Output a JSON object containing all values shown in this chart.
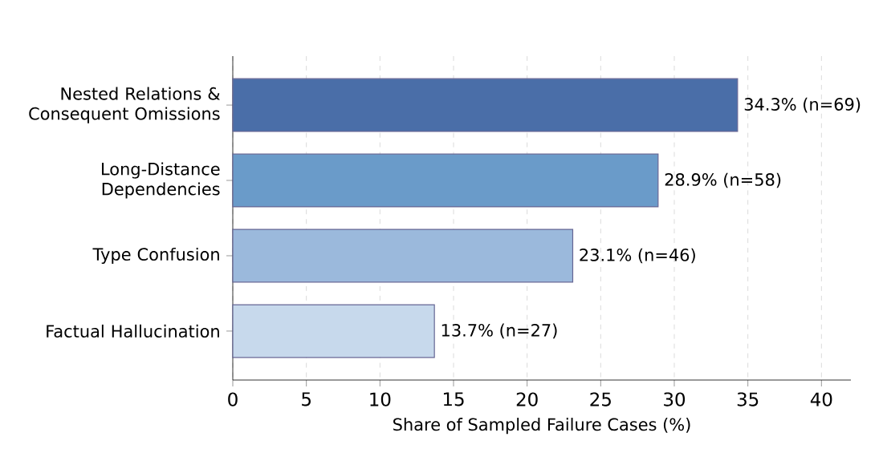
{
  "chart_data": {
    "type": "bar",
    "orientation": "horizontal",
    "xlabel": "Share of Sampled Failure Cases (%)",
    "categories": [
      "Nested Relations & Consequent Omissions",
      "Long-Distance Dependencies",
      "Type Confusion",
      "Factual Hallucination"
    ],
    "values": [
      34.3,
      28.9,
      23.1,
      13.7
    ],
    "colors": [
      "#4a6ea8",
      "#6a9bc9",
      "#9bb9dc",
      "#c7d9ec"
    ],
    "value_labels": [
      "34.3%  (n=69)",
      "28.9%  (n=58)",
      "23.1%  (n=46)",
      "13.7%  (n=27)"
    ],
    "xlim": [
      0,
      42
    ],
    "xticks": [
      0,
      5,
      10,
      15,
      20,
      25,
      30,
      35,
      40
    ],
    "grid": "x"
  }
}
